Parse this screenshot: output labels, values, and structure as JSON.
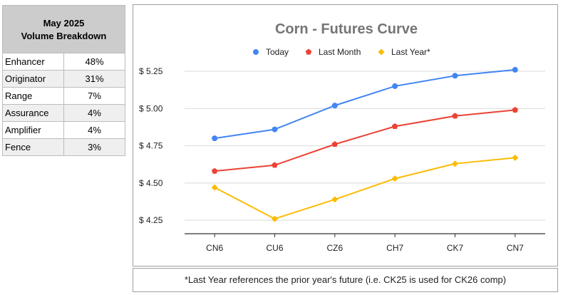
{
  "volume_table": {
    "title_line1": "May 2025",
    "title_line2": "Volume Breakdown",
    "rows": [
      {
        "name": "Enhancer",
        "pct": "48%"
      },
      {
        "name": "Originator",
        "pct": "31%"
      },
      {
        "name": "Range",
        "pct": "7%"
      },
      {
        "name": "Assurance",
        "pct": "4%"
      },
      {
        "name": "Amplifier",
        "pct": "4%"
      },
      {
        "name": "Fence",
        "pct": "3%"
      }
    ]
  },
  "chart_data": {
    "type": "line",
    "title": "Corn - Futures Curve",
    "categories": [
      "CN6",
      "CU6",
      "CZ6",
      "CH7",
      "CK7",
      "CN7"
    ],
    "series": [
      {
        "name": "Today",
        "color": "#4285f4",
        "marker": "circle",
        "values": [
          4.8,
          4.86,
          5.02,
          5.15,
          5.22,
          5.26
        ]
      },
      {
        "name": "Last Month",
        "color": "#ea4335",
        "marker": "pentagon",
        "values": [
          4.58,
          4.62,
          4.76,
          4.88,
          4.95,
          4.99
        ]
      },
      {
        "name": "Last Year*",
        "color": "#fbbc04",
        "marker": "diamond",
        "values": [
          4.47,
          4.26,
          4.39,
          4.53,
          4.63,
          4.67
        ]
      }
    ],
    "yticks": [
      4.25,
      4.5,
      4.75,
      5.0,
      5.25
    ],
    "ytick_labels": [
      "$ 4.25",
      "$ 4.50",
      "$ 4.75",
      "$ 5.00",
      "$ 5.25"
    ],
    "ylim": [
      4.16,
      5.36
    ],
    "grid": true,
    "legend_position": "top"
  },
  "footnote": "*Last Year references the prior year's future (i.e. CK25 is used for CK26 comp)"
}
